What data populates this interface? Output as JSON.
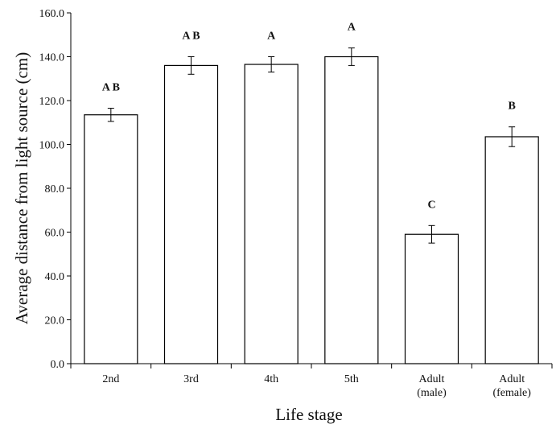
{
  "chart_data": {
    "type": "bar",
    "xlabel": "Life stage",
    "ylabel": "Average distance from light source (cm)",
    "ylim": [
      0,
      160
    ],
    "yticks": [
      "0.0",
      "20.0",
      "40.0",
      "60.0",
      "80.0",
      "100.0",
      "120.0",
      "140.0",
      "160.0"
    ],
    "categories": [
      [
        "2nd"
      ],
      [
        "3rd"
      ],
      [
        "4th"
      ],
      [
        "5th"
      ],
      [
        "Adult",
        "(male)"
      ],
      [
        "Adult",
        "(female)"
      ]
    ],
    "values": [
      113.5,
      136.0,
      136.5,
      140.0,
      59.0,
      103.5
    ],
    "errors": [
      3.0,
      4.0,
      3.5,
      4.0,
      4.0,
      4.5
    ],
    "significance_labels": [
      "A B",
      "A B",
      "A",
      "A",
      "C",
      "B"
    ],
    "grid": false,
    "legend": "none",
    "colors": {
      "bar_fill": "#ffffff",
      "bar_stroke": "#000000",
      "axis": "#000000"
    }
  }
}
